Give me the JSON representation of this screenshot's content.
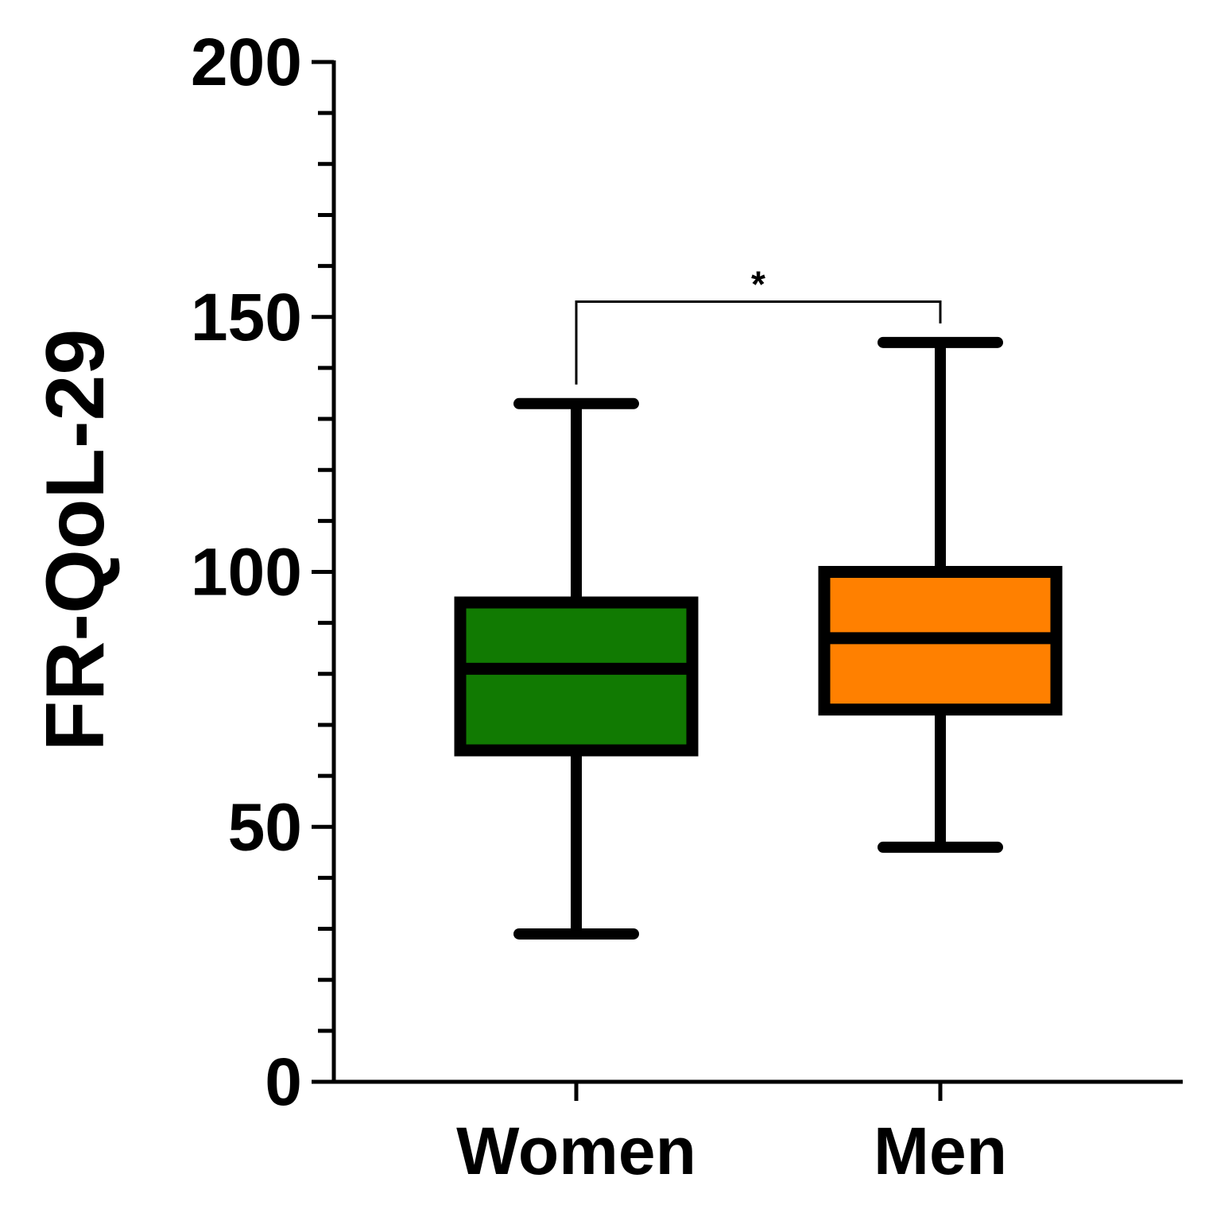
{
  "chart_data": {
    "type": "box",
    "ylabel": "FR-QoL-29",
    "xlabel": "",
    "ylim": [
      0,
      200
    ],
    "yticks": [
      0,
      50,
      100,
      150,
      200
    ],
    "ytick_labels": [
      "0",
      "50",
      "100",
      "150",
      "200"
    ],
    "minor_tick_step": 10,
    "categories": [
      "Women",
      "Men"
    ],
    "series": [
      {
        "category": "Women",
        "min": 29,
        "q1": 65,
        "median": 81,
        "q3": 94,
        "max": 133,
        "color": "#117a02"
      },
      {
        "category": "Men",
        "min": 46,
        "q1": 73,
        "median": 87,
        "q3": 100,
        "max": 145,
        "color": "#ff8000"
      }
    ],
    "annotations": [
      {
        "type": "significance-bracket",
        "between": [
          "Women",
          "Men"
        ],
        "label": "*",
        "y": 153
      }
    ],
    "grid": false,
    "legend": "none"
  }
}
